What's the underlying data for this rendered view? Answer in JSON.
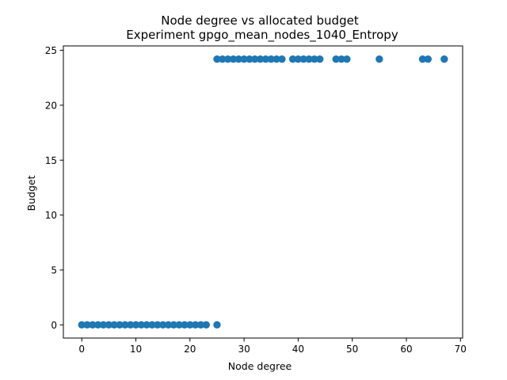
{
  "chart_data": {
    "type": "scatter",
    "title": "Node degree vs allocated budget",
    "subtitle": "Experiment gpgo_mean_nodes_1040_Entropy",
    "xlabel": "Node degree",
    "ylabel": "Budget",
    "xlim": [
      -3.4,
      70.4
    ],
    "ylim": [
      -1.2,
      25.4
    ],
    "xticks": [
      0,
      10,
      20,
      30,
      40,
      50,
      60,
      70
    ],
    "yticks": [
      0,
      5,
      10,
      15,
      20,
      25
    ],
    "grid": false,
    "marker_color": "#1f77b4",
    "series": [
      {
        "x": [
          0,
          1,
          2,
          3,
          4,
          5,
          6,
          7,
          8,
          9,
          10,
          11,
          12,
          13,
          14,
          15,
          16,
          17,
          18,
          19,
          20,
          21,
          22,
          23,
          25,
          25,
          26,
          27,
          28,
          29,
          30,
          31,
          32,
          33,
          34,
          35,
          36,
          37,
          39,
          40,
          41,
          42,
          43,
          44,
          47,
          48,
          49,
          55,
          63,
          64,
          67
        ],
        "y": [
          0,
          0,
          0,
          0,
          0,
          0,
          0,
          0,
          0,
          0,
          0,
          0,
          0,
          0,
          0,
          0,
          0,
          0,
          0,
          0,
          0,
          0,
          0,
          0,
          0,
          24.2,
          24.2,
          24.2,
          24.2,
          24.2,
          24.2,
          24.2,
          24.2,
          24.2,
          24.2,
          24.2,
          24.2,
          24.2,
          24.2,
          24.2,
          24.2,
          24.2,
          24.2,
          24.2,
          24.2,
          24.2,
          24.2,
          24.2,
          24.2,
          24.2,
          24.2
        ]
      }
    ]
  }
}
